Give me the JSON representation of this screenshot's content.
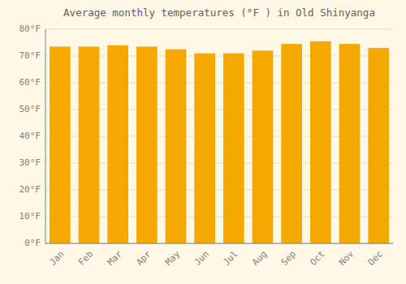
{
  "chart_data": {
    "type": "bar",
    "title": "Average monthly temperatures (°F ) in Old Shinyanga",
    "categories": [
      "Jan",
      "Feb",
      "Mar",
      "Apr",
      "May",
      "Jun",
      "Jul",
      "Aug",
      "Sep",
      "Oct",
      "Nov",
      "Dec"
    ],
    "values": [
      73.5,
      73.5,
      74.0,
      73.5,
      72.5,
      71.0,
      71.0,
      72.0,
      74.5,
      75.5,
      74.5,
      73.0
    ],
    "color": "#F5A800",
    "ylim": [
      0,
      80
    ],
    "yticks": [
      {
        "value": 0,
        "label": "0°F"
      },
      {
        "value": 10,
        "label": "10°F"
      },
      {
        "value": 20,
        "label": "20°F"
      },
      {
        "value": 30,
        "label": "30°F"
      },
      {
        "value": 40,
        "label": "40°F"
      },
      {
        "value": 50,
        "label": "50°F"
      },
      {
        "value": 60,
        "label": "60°F"
      },
      {
        "value": 70,
        "label": "70°F"
      },
      {
        "value": 80,
        "label": "80°F"
      }
    ],
    "grid": true
  }
}
